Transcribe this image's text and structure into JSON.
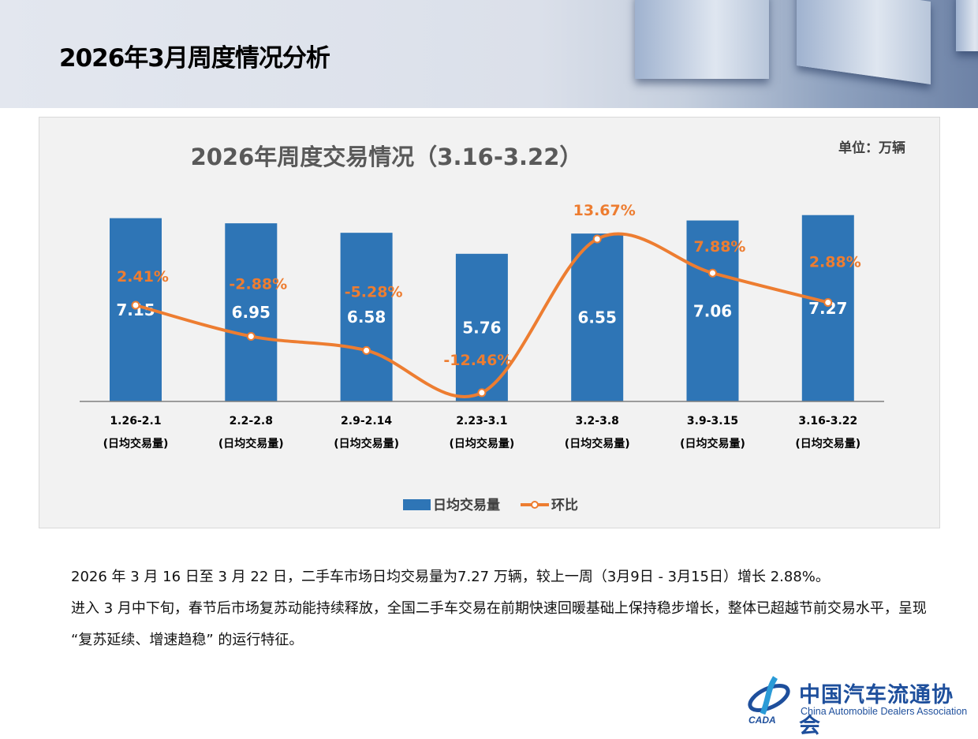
{
  "header": {
    "title": "2026年3月周度情况分析"
  },
  "chart_data": {
    "type": "bar+line",
    "title": "2026年周度交易情况（3.16-3.22）",
    "unit": "单位：万辆",
    "categories": [
      [
        "1.26-2.1",
        "(日均交易量)"
      ],
      [
        "2.2-2.8",
        "(日均交易量)"
      ],
      [
        "2.9-2.14",
        "(日均交易量)"
      ],
      [
        "2.23-3.1",
        "(日均交易量)"
      ],
      [
        "3.2-3.8",
        "(日均交易量)"
      ],
      [
        "3.9-3.15",
        "(日均交易量)"
      ],
      [
        "3.16-3.22",
        "(日均交易量)"
      ]
    ],
    "series": [
      {
        "name": "日均交易量",
        "type": "bar",
        "color": "#2e75b6",
        "values": [
          7.15,
          6.95,
          6.58,
          5.76,
          6.55,
          7.06,
          7.27
        ],
        "labels": [
          "7.15",
          "6.95",
          "6.58",
          "5.76",
          "6.55",
          "7.06",
          "7.27"
        ]
      },
      {
        "name": "环比",
        "type": "line",
        "color": "#ed7d31",
        "values": [
          2.41,
          -2.88,
          -5.28,
          -12.46,
          13.67,
          7.88,
          2.88
        ],
        "labels": [
          "2.41%",
          "-2.88%",
          "-5.28%",
          "-12.46%",
          "13.67%",
          "7.88%",
          "2.88%"
        ]
      }
    ],
    "legend": "bottom",
    "grid": false
  },
  "body": {
    "p1": "2026 年 3 月 16 日至 3 月 22 日，二手车市场日均交易量为7.27 万辆，较上一周（3月9日 - 3月15日）增长 2.88%。",
    "p2": "进入 3 月中下旬，春节后市场复苏动能持续释放，全国二手车交易在前期快速回暖基础上保持稳步增长，整体已超越节前交易水平，呈现 “复苏延续、增速趋稳” 的运行特征。"
  },
  "logo": {
    "cn": "中国汽车流通协会",
    "en": "China Automobile Dealers Association",
    "mark": "CADA"
  }
}
